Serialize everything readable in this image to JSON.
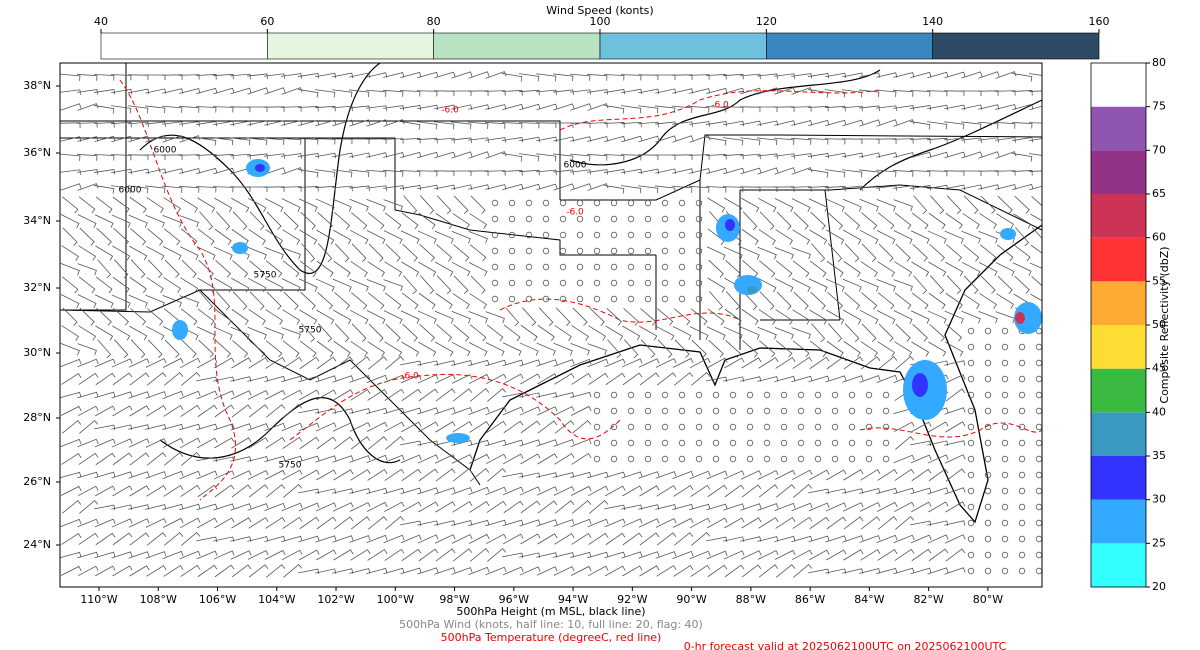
{
  "top_colorbar": {
    "label": "Wind Speed (konts)",
    "ticks": [
      40,
      60,
      80,
      100,
      120,
      140,
      160
    ],
    "colors": [
      "#ffffff",
      "#e5f5e0",
      "#b8e2c2",
      "#6ec1dd",
      "#3a86c0",
      "#2f4a66"
    ]
  },
  "right_colorbar": {
    "label": "Composite Reflectivity (dbZ)",
    "ticks": [
      20,
      25,
      30,
      35,
      40,
      45,
      50,
      55,
      60,
      65,
      70,
      75,
      80
    ],
    "colors": [
      "#33ffff",
      "#33aaff",
      "#3333ff",
      "#3a99c0",
      "#3ab940",
      "#fddc33",
      "#ffaa33",
      "#ff3333",
      "#cc3355",
      "#923388",
      "#9055b0",
      "#ffffff"
    ]
  },
  "map": {
    "lat_labels": [
      "38°N",
      "36°N",
      "34°N",
      "32°N",
      "30°N",
      "28°N",
      "26°N",
      "24°N"
    ],
    "lon_labels": [
      "110°W",
      "108°W",
      "106°W",
      "104°W",
      "102°W",
      "100°W",
      "98°W",
      "96°W",
      "94°W",
      "92°W",
      "90°W",
      "88°W",
      "86°W",
      "84°W",
      "82°W",
      "80°W"
    ],
    "contour_labels": [
      "6000",
      "6000",
      "5750",
      "5750",
      "-6.0",
      "-6.0",
      "-6.0",
      "-6.0",
      "6000",
      "5750"
    ]
  },
  "captions": {
    "height": "500hPa Height (m MSL, black line)",
    "wind": "500hPa Wind (knots, half line: 10, full line: 20, flag: 40)",
    "temperature": "500hPa Temperature (degreeC, red line)",
    "valid": "0-hr forecast valid at 2025062100UTC on 2025062100UTC"
  }
}
